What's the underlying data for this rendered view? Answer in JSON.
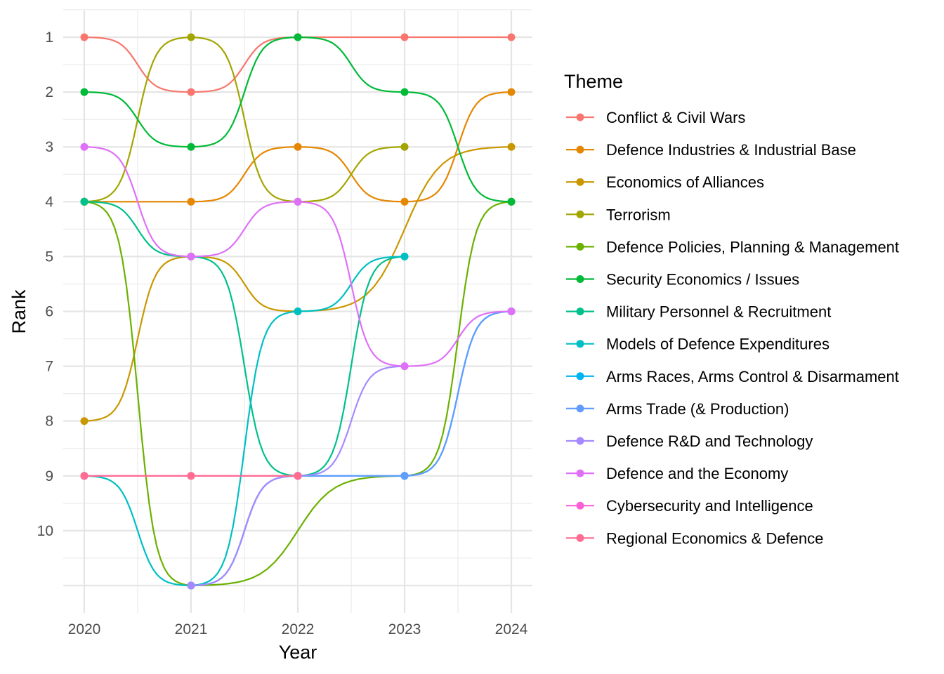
{
  "chart_data": {
    "type": "line",
    "subtype": "bump chart",
    "xlabel": "Year",
    "ylabel": "Rank",
    "x": [
      2020,
      2021,
      2022,
      2023,
      2024
    ],
    "x_tick_labels": [
      "2020",
      "2021",
      "2022",
      "2023",
      "2024"
    ],
    "y_tick_labels": [
      "1",
      "2",
      "3",
      "4",
      "5",
      "6",
      "7",
      "8",
      "9",
      "10"
    ],
    "ylim": [
      1,
      11
    ],
    "y_reversed": true,
    "grid": true,
    "legend": {
      "title": "Theme",
      "position": "right"
    },
    "series": [
      {
        "name": "Conflict & Civil Wars",
        "color": "#F8766D",
        "values": [
          1,
          2,
          1,
          1,
          1
        ]
      },
      {
        "name": "Defence Industries & Industrial Base",
        "color": "#E58700",
        "values": [
          4,
          4,
          3,
          4,
          2
        ]
      },
      {
        "name": "Economics of Alliances",
        "color": "#C99800",
        "values": [
          8,
          5,
          6,
          null,
          3
        ]
      },
      {
        "name": "Terrorism",
        "color": "#A3A500",
        "values": [
          4,
          1,
          4,
          3,
          null
        ]
      },
      {
        "name": "Defence Policies, Planning & Management",
        "color": "#6BB100",
        "values": [
          4,
          11,
          null,
          9,
          4
        ]
      },
      {
        "name": "Security Economics / Issues",
        "color": "#00BA38",
        "values": [
          2,
          3,
          1,
          2,
          4
        ]
      },
      {
        "name": "Military Personnel & Recruitment",
        "color": "#00C08B",
        "values": [
          4,
          5,
          9,
          5,
          null
        ]
      },
      {
        "name": "Models of Defence Expenditures",
        "color": "#00BFC4",
        "values": [
          9,
          11,
          6,
          5,
          null
        ]
      },
      {
        "name": "Arms Races, Arms Control & Disarmament",
        "color": "#00B4F0",
        "values": [
          null,
          11,
          9,
          9,
          6
        ]
      },
      {
        "name": "Arms Trade (& Production)",
        "color": "#619CFF",
        "values": [
          null,
          11,
          9,
          9,
          6
        ]
      },
      {
        "name": "Defence R&D and Technology",
        "color": "#A58AFF",
        "values": [
          null,
          11,
          9,
          7,
          null
        ]
      },
      {
        "name": "Defence and the Economy",
        "color": "#DF70F8",
        "values": [
          3,
          5,
          4,
          7,
          6
        ]
      },
      {
        "name": "Cybersecurity and Intelligence",
        "color": "#FB61D7",
        "values": [
          9,
          9,
          9,
          null,
          null
        ]
      },
      {
        "name": "Regional Economics & Defence",
        "color": "#FF6C91",
        "values": [
          9,
          9,
          9,
          null,
          null
        ]
      }
    ]
  }
}
